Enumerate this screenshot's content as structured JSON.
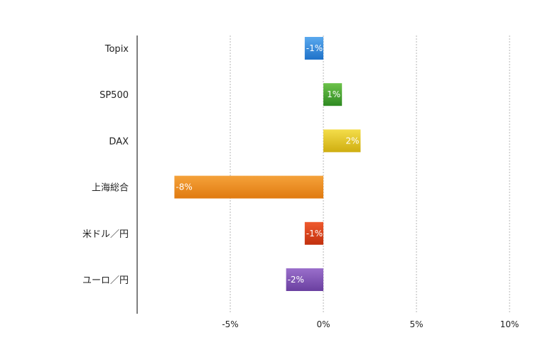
{
  "chart_data": {
    "type": "bar",
    "orientation": "horizontal",
    "title": "",
    "xlabel": "",
    "ylabel": "",
    "categories": [
      "Topix",
      "SP500",
      "DAX",
      "上海総合",
      "米ドル／円",
      "ユーロ／円"
    ],
    "values": [
      -1,
      1,
      2,
      -8,
      -1,
      -2
    ],
    "data_labels": [
      "-1%",
      "1%",
      "2%",
      "-8%",
      "-1%",
      "-2%"
    ],
    "colors": [
      [
        "#5aa9ee",
        "#1f72c9"
      ],
      [
        "#6cc24a",
        "#2f8a22"
      ],
      [
        "#f4dd4a",
        "#cfae10"
      ],
      [
        "#f5a23a",
        "#e07a10"
      ],
      [
        "#ef5a2e",
        "#c2300e"
      ],
      [
        "#9a6fcb",
        "#6a3fa0"
      ]
    ],
    "xlim": [
      -10,
      10
    ],
    "ticks": [
      -5,
      0,
      5,
      10
    ],
    "tick_labels": [
      "-5%",
      "0%",
      "5%",
      "10%"
    ],
    "grid": true,
    "legend": "none"
  }
}
